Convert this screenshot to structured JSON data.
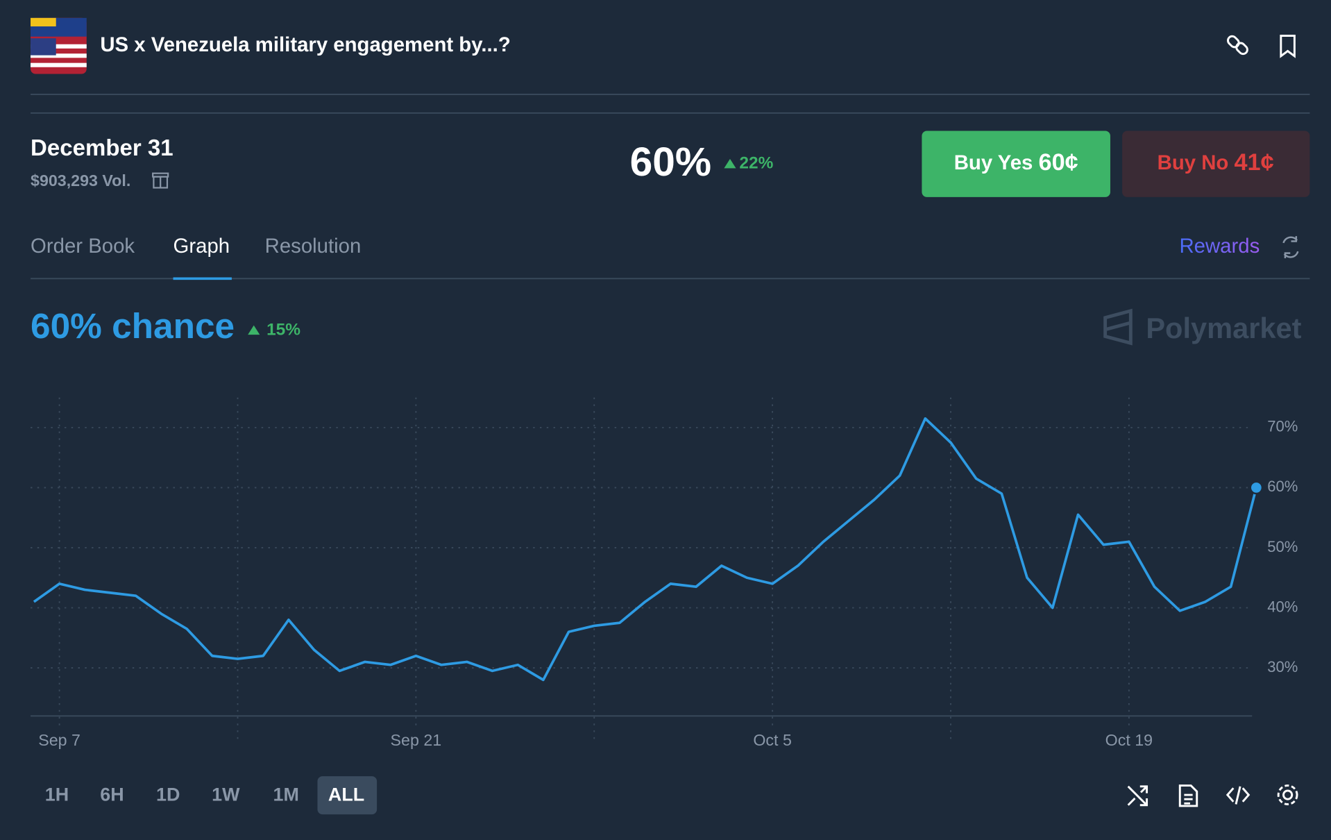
{
  "header": {
    "title": "US x Venezuela military engagement by...?"
  },
  "market": {
    "outcome": "December 31",
    "volume": "$903,293 Vol.",
    "price": "60%",
    "change": "22%",
    "buy_yes": {
      "label": "Buy Yes",
      "price": "60¢"
    },
    "buy_no": {
      "label": "Buy No",
      "price": "41¢"
    }
  },
  "tabs": [
    "Order Book",
    "Graph",
    "Resolution"
  ],
  "rewards": "Rewards",
  "headline": {
    "chance": "60% chance",
    "change": "15%",
    "brand": "Polymarket"
  },
  "ranges": [
    "1H",
    "6H",
    "1D",
    "1W",
    "1M",
    "ALL"
  ],
  "chart_data": {
    "type": "line",
    "categories": [
      "Sep 6",
      "Sep 7",
      "Sep 8",
      "Sep 9",
      "Sep 10",
      "Sep 11",
      "Sep 12",
      "Sep 13",
      "Sep 14",
      "Sep 15",
      "Sep 16",
      "Sep 17",
      "Sep 18",
      "Sep 19",
      "Sep 20",
      "Sep 21",
      "Sep 22",
      "Sep 23",
      "Sep 24",
      "Sep 25",
      "Sep 26",
      "Sep 27",
      "Sep 28",
      "Sep 29",
      "Sep 30",
      "Oct 1",
      "Oct 2",
      "Oct 3",
      "Oct 4",
      "Oct 5",
      "Oct 6",
      "Oct 7",
      "Oct 8",
      "Oct 9",
      "Oct 10",
      "Oct 11",
      "Oct 12",
      "Oct 13",
      "Oct 14",
      "Oct 15",
      "Oct 16",
      "Oct 17",
      "Oct 18",
      "Oct 19",
      "Oct 20",
      "Oct 21",
      "Oct 22",
      "Oct 23",
      "Oct 24"
    ],
    "series": [
      {
        "name": "Yes",
        "color": "#2e9be3",
        "values": [
          41,
          44,
          43,
          42.5,
          42,
          39,
          36.5,
          32,
          31.5,
          32,
          38,
          33,
          29.5,
          31,
          30.5,
          32,
          30.5,
          31,
          29.5,
          30.5,
          28,
          36,
          37,
          37.5,
          41,
          44,
          43.5,
          47,
          45,
          44,
          47,
          51,
          54.5,
          58,
          62,
          71.5,
          67.5,
          61.5,
          59,
          45,
          40,
          55.5,
          50.5,
          51,
          43.5,
          39.5,
          41,
          43.5,
          60
        ]
      }
    ],
    "xticks": [
      "Sep 7",
      "Sep 21",
      "Oct 5",
      "Oct 19"
    ],
    "ylim": [
      22,
      75
    ],
    "yticks": [
      {
        "value": 30,
        "label": "30%"
      },
      {
        "value": 40,
        "label": "40%"
      },
      {
        "value": 50,
        "label": "50%"
      },
      {
        "value": 60,
        "label": "60%"
      },
      {
        "value": 70,
        "label": "70%"
      }
    ],
    "grid": true
  }
}
